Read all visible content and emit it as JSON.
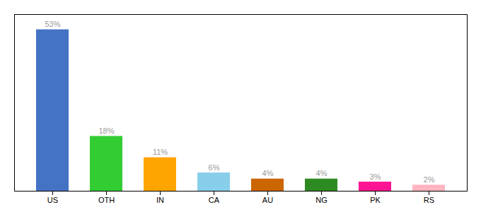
{
  "chart_data": {
    "type": "bar",
    "categories": [
      "US",
      "OTH",
      "IN",
      "CA",
      "AU",
      "NG",
      "PK",
      "RS"
    ],
    "values": [
      53,
      18,
      11,
      6,
      4,
      4,
      3,
      2
    ],
    "value_labels": [
      "53%",
      "18%",
      "11%",
      "6%",
      "4%",
      "4%",
      "3%",
      "2%"
    ],
    "colors": [
      "#4472C4",
      "#33CC33",
      "#FFA500",
      "#87CEEB",
      "#CC6600",
      "#2E8B22",
      "#FF1493",
      "#FFB6C1"
    ],
    "ylim": [
      0,
      58
    ],
    "data_labels": true,
    "tick_labels": "x"
  }
}
